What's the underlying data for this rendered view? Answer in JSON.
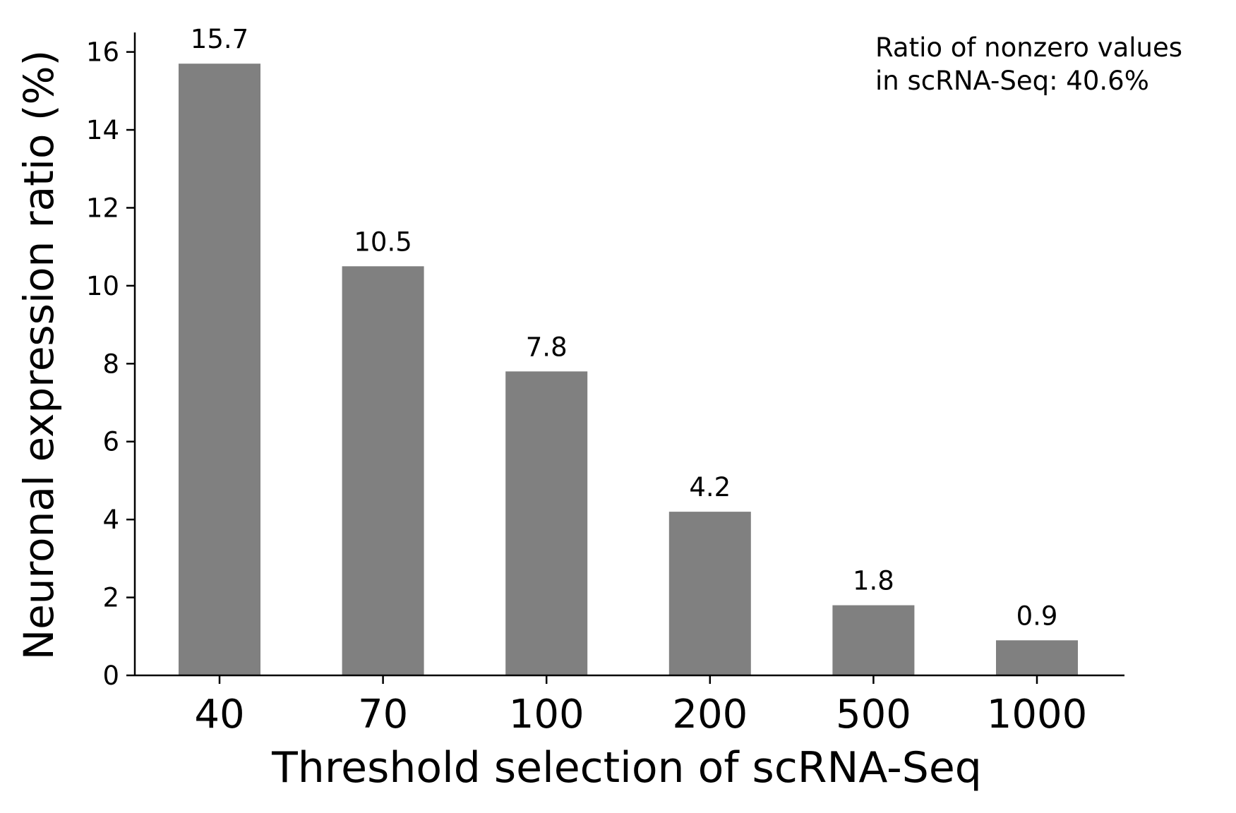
{
  "chart_data": {
    "type": "bar",
    "title": "",
    "xlabel": "Threshold selection of scRNA-Seq",
    "ylabel": "Neuronal expression ratio (%)",
    "categories": [
      "40",
      "70",
      "100",
      "200",
      "500",
      "1000"
    ],
    "values": [
      15.7,
      10.5,
      7.8,
      4.2,
      1.8,
      0.9
    ],
    "value_labels": [
      "15.7",
      "10.5",
      "7.8",
      "4.2",
      "1.8",
      "0.9"
    ],
    "ylim": [
      0,
      16.5
    ],
    "yticks": [
      0,
      2,
      4,
      6,
      8,
      10,
      12,
      14,
      16
    ],
    "grid": false,
    "bar_color": "#808080",
    "annotation": {
      "line1": "Ratio of nonzero values",
      "line2": "in scRNA-Seq: 40.6%"
    }
  }
}
